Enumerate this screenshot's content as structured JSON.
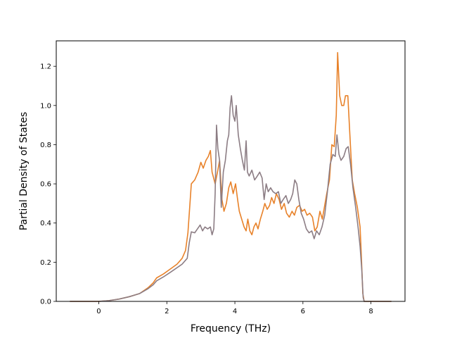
{
  "chart_data": {
    "type": "line",
    "xlabel": "Frequency (THz)",
    "ylabel": "Partial Density of States",
    "xlim": [
      -1.25,
      9.0
    ],
    "ylim": [
      0.0,
      1.33
    ],
    "x_ticks": [
      0,
      2,
      4,
      6,
      8
    ],
    "y_ticks": [
      0.0,
      0.2,
      0.4,
      0.6,
      0.8,
      1.0,
      1.2
    ],
    "x_tick_labels": [
      "0",
      "2",
      "4",
      "6",
      "8"
    ],
    "y_tick_labels": [
      "0.0",
      "0.2",
      "0.4",
      "0.6",
      "0.8",
      "1.0",
      "1.2"
    ],
    "grid": false,
    "series": [
      {
        "color": "#e8822a",
        "points": [
          [
            -0.85,
            0.0
          ],
          [
            -0.4,
            0.0
          ],
          [
            0.0,
            0.0
          ],
          [
            0.3,
            0.004
          ],
          [
            0.6,
            0.012
          ],
          [
            0.9,
            0.024
          ],
          [
            1.2,
            0.04
          ],
          [
            1.45,
            0.07
          ],
          [
            1.6,
            0.095
          ],
          [
            1.7,
            0.12
          ],
          [
            1.9,
            0.14
          ],
          [
            2.1,
            0.165
          ],
          [
            2.3,
            0.19
          ],
          [
            2.45,
            0.22
          ],
          [
            2.55,
            0.26
          ],
          [
            2.62,
            0.35
          ],
          [
            2.68,
            0.5
          ],
          [
            2.72,
            0.6
          ],
          [
            2.82,
            0.62
          ],
          [
            2.92,
            0.66
          ],
          [
            3.0,
            0.71
          ],
          [
            3.07,
            0.68
          ],
          [
            3.15,
            0.72
          ],
          [
            3.22,
            0.74
          ],
          [
            3.28,
            0.77
          ],
          [
            3.33,
            0.66
          ],
          [
            3.42,
            0.6
          ],
          [
            3.5,
            0.67
          ],
          [
            3.55,
            0.72
          ],
          [
            3.62,
            0.52
          ],
          [
            3.68,
            0.46
          ],
          [
            3.75,
            0.5
          ],
          [
            3.82,
            0.58
          ],
          [
            3.88,
            0.61
          ],
          [
            3.95,
            0.55
          ],
          [
            4.02,
            0.6
          ],
          [
            4.08,
            0.52
          ],
          [
            4.13,
            0.46
          ],
          [
            4.2,
            0.42
          ],
          [
            4.27,
            0.38
          ],
          [
            4.33,
            0.36
          ],
          [
            4.38,
            0.42
          ],
          [
            4.44,
            0.36
          ],
          [
            4.5,
            0.34
          ],
          [
            4.56,
            0.38
          ],
          [
            4.62,
            0.4
          ],
          [
            4.68,
            0.37
          ],
          [
            4.75,
            0.42
          ],
          [
            4.82,
            0.46
          ],
          [
            4.88,
            0.5
          ],
          [
            4.95,
            0.47
          ],
          [
            5.02,
            0.49
          ],
          [
            5.08,
            0.53
          ],
          [
            5.15,
            0.5
          ],
          [
            5.22,
            0.55
          ],
          [
            5.3,
            0.52
          ],
          [
            5.37,
            0.47
          ],
          [
            5.45,
            0.5
          ],
          [
            5.52,
            0.45
          ],
          [
            5.6,
            0.43
          ],
          [
            5.68,
            0.46
          ],
          [
            5.75,
            0.44
          ],
          [
            5.82,
            0.48
          ],
          [
            5.9,
            0.49
          ],
          [
            5.98,
            0.46
          ],
          [
            6.05,
            0.47
          ],
          [
            6.12,
            0.44
          ],
          [
            6.2,
            0.45
          ],
          [
            6.28,
            0.43
          ],
          [
            6.35,
            0.36
          ],
          [
            6.42,
            0.38
          ],
          [
            6.5,
            0.46
          ],
          [
            6.57,
            0.42
          ],
          [
            6.63,
            0.48
          ],
          [
            6.7,
            0.55
          ],
          [
            6.78,
            0.62
          ],
          [
            6.85,
            0.8
          ],
          [
            6.92,
            0.79
          ],
          [
            6.98,
            0.95
          ],
          [
            7.02,
            1.27
          ],
          [
            7.08,
            1.05
          ],
          [
            7.14,
            1.0
          ],
          [
            7.2,
            1.0
          ],
          [
            7.25,
            1.05
          ],
          [
            7.32,
            1.05
          ],
          [
            7.38,
            0.85
          ],
          [
            7.45,
            0.62
          ],
          [
            7.52,
            0.55
          ],
          [
            7.6,
            0.48
          ],
          [
            7.68,
            0.38
          ],
          [
            7.72,
            0.22
          ],
          [
            7.76,
            0.04
          ],
          [
            7.8,
            0.0
          ],
          [
            8.2,
            0.0
          ],
          [
            8.6,
            0.0
          ]
        ]
      },
      {
        "color": "#8c7d84",
        "points": [
          [
            -0.85,
            0.0
          ],
          [
            -0.4,
            0.0
          ],
          [
            0.0,
            0.0
          ],
          [
            0.3,
            0.004
          ],
          [
            0.6,
            0.012
          ],
          [
            0.9,
            0.024
          ],
          [
            1.2,
            0.04
          ],
          [
            1.45,
            0.065
          ],
          [
            1.6,
            0.085
          ],
          [
            1.7,
            0.105
          ],
          [
            1.9,
            0.125
          ],
          [
            2.1,
            0.148
          ],
          [
            2.3,
            0.172
          ],
          [
            2.45,
            0.19
          ],
          [
            2.6,
            0.22
          ],
          [
            2.66,
            0.3
          ],
          [
            2.72,
            0.355
          ],
          [
            2.82,
            0.35
          ],
          [
            2.9,
            0.37
          ],
          [
            2.98,
            0.39
          ],
          [
            3.05,
            0.36
          ],
          [
            3.12,
            0.38
          ],
          [
            3.2,
            0.37
          ],
          [
            3.28,
            0.38
          ],
          [
            3.33,
            0.34
          ],
          [
            3.38,
            0.37
          ],
          [
            3.42,
            0.55
          ],
          [
            3.46,
            0.9
          ],
          [
            3.5,
            0.78
          ],
          [
            3.55,
            0.72
          ],
          [
            3.6,
            0.48
          ],
          [
            3.66,
            0.66
          ],
          [
            3.72,
            0.72
          ],
          [
            3.78,
            0.82
          ],
          [
            3.82,
            0.85
          ],
          [
            3.86,
            0.99
          ],
          [
            3.9,
            1.05
          ],
          [
            3.95,
            0.95
          ],
          [
            4.0,
            0.92
          ],
          [
            4.04,
            1.0
          ],
          [
            4.1,
            0.85
          ],
          [
            4.16,
            0.78
          ],
          [
            4.22,
            0.72
          ],
          [
            4.28,
            0.67
          ],
          [
            4.33,
            0.82
          ],
          [
            4.37,
            0.66
          ],
          [
            4.42,
            0.64
          ],
          [
            4.5,
            0.67
          ],
          [
            4.58,
            0.62
          ],
          [
            4.66,
            0.64
          ],
          [
            4.73,
            0.66
          ],
          [
            4.8,
            0.63
          ],
          [
            4.86,
            0.52
          ],
          [
            4.92,
            0.6
          ],
          [
            4.98,
            0.56
          ],
          [
            5.05,
            0.58
          ],
          [
            5.12,
            0.56
          ],
          [
            5.2,
            0.55
          ],
          [
            5.28,
            0.56
          ],
          [
            5.35,
            0.5
          ],
          [
            5.42,
            0.52
          ],
          [
            5.5,
            0.54
          ],
          [
            5.57,
            0.5
          ],
          [
            5.64,
            0.52
          ],
          [
            5.7,
            0.55
          ],
          [
            5.76,
            0.62
          ],
          [
            5.82,
            0.6
          ],
          [
            5.88,
            0.52
          ],
          [
            5.95,
            0.45
          ],
          [
            6.02,
            0.42
          ],
          [
            6.1,
            0.37
          ],
          [
            6.18,
            0.35
          ],
          [
            6.26,
            0.36
          ],
          [
            6.33,
            0.32
          ],
          [
            6.4,
            0.36
          ],
          [
            6.48,
            0.34
          ],
          [
            6.56,
            0.38
          ],
          [
            6.64,
            0.44
          ],
          [
            6.72,
            0.56
          ],
          [
            6.8,
            0.7
          ],
          [
            6.88,
            0.75
          ],
          [
            6.95,
            0.74
          ],
          [
            7.0,
            0.85
          ],
          [
            7.06,
            0.75
          ],
          [
            7.12,
            0.72
          ],
          [
            7.2,
            0.74
          ],
          [
            7.27,
            0.78
          ],
          [
            7.33,
            0.79
          ],
          [
            7.4,
            0.7
          ],
          [
            7.47,
            0.58
          ],
          [
            7.55,
            0.48
          ],
          [
            7.62,
            0.38
          ],
          [
            7.68,
            0.28
          ],
          [
            7.73,
            0.16
          ],
          [
            7.77,
            0.02
          ],
          [
            7.8,
            0.0
          ],
          [
            8.2,
            0.0
          ],
          [
            8.6,
            0.0
          ]
        ]
      }
    ]
  }
}
